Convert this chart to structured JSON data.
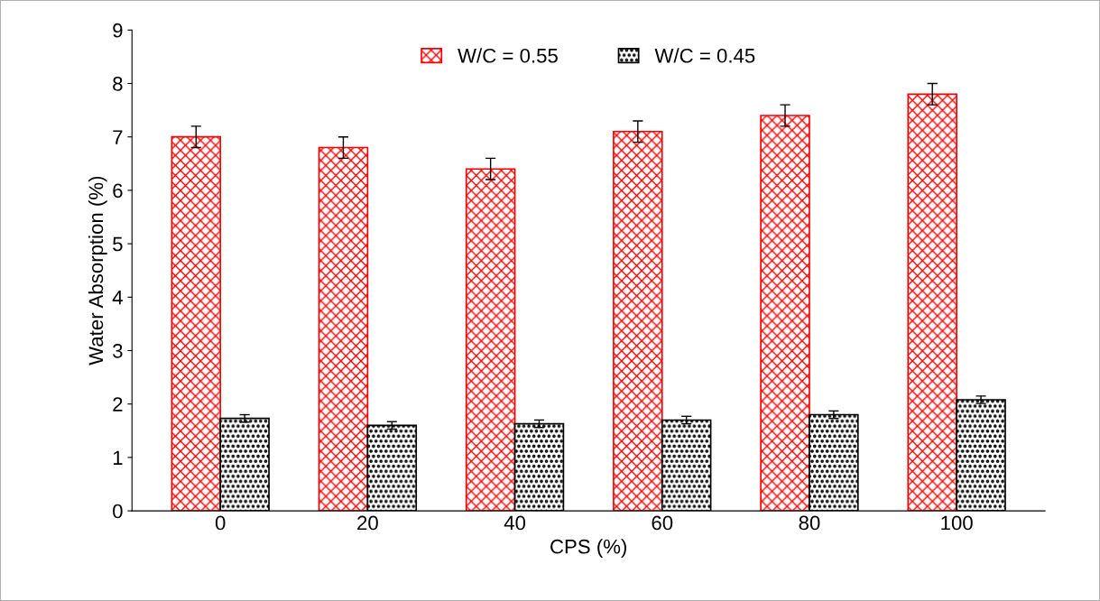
{
  "chart_data": {
    "type": "bar",
    "xlabel": "CPS (%)",
    "ylabel": "Water Absorption (%)",
    "categories": [
      "0",
      "20",
      "40",
      "60",
      "80",
      "100"
    ],
    "series": [
      {
        "name": "W/C = 0.55",
        "color": "#ff0000",
        "values": [
          7.0,
          6.8,
          6.4,
          7.1,
          7.4,
          7.8
        ],
        "errors": [
          0.2,
          0.2,
          0.2,
          0.2,
          0.2,
          0.2
        ]
      },
      {
        "name": "W/C = 0.45",
        "color": "#000000",
        "values": [
          1.73,
          1.6,
          1.63,
          1.7,
          1.8,
          2.08
        ],
        "errors": [
          0.07,
          0.07,
          0.07,
          0.07,
          0.07,
          0.07
        ]
      }
    ],
    "ylim": [
      0,
      9
    ],
    "yticks": [
      0,
      1,
      2,
      3,
      4,
      5,
      6,
      7,
      8,
      9
    ],
    "grid": false,
    "legend": "top"
  }
}
